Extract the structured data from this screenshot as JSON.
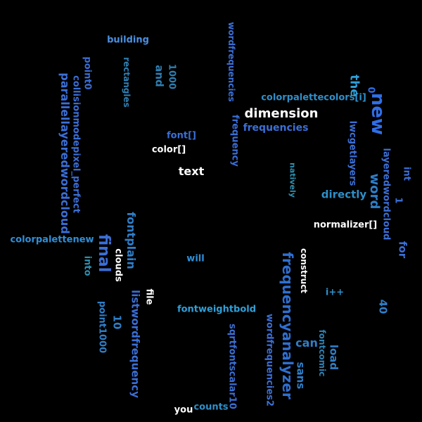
{
  "words": [
    {
      "text": "building",
      "color": "#4a90e2",
      "rotation": 0
    },
    {
      "text": "point0",
      "color": "#3b6fd6",
      "rotation": 90
    },
    {
      "text": "rectangles",
      "color": "#2f7fb3",
      "rotation": 90
    },
    {
      "text": "1000",
      "color": "#2f7fb3",
      "rotation": 90
    },
    {
      "text": "and",
      "color": "#2f7fb3",
      "rotation": 90
    },
    {
      "text": "parallellayeredwordcloud",
      "color": "#3b6fd6",
      "rotation": 90
    },
    {
      "text": "collisionmodepixel_perfect",
      "color": "#3b6fd6",
      "rotation": 90
    },
    {
      "text": "wordfrequencies",
      "color": "#3b6fd6",
      "rotation": 90
    },
    {
      "text": "frequency",
      "color": "#3b6fd6",
      "rotation": 90
    },
    {
      "text": "colorpalettecolors[i]",
      "color": "#2f8fc8",
      "rotation": 0
    },
    {
      "text": "dimension",
      "color": "#ffffff",
      "rotation": 0
    },
    {
      "text": "frequencies",
      "color": "#3b6fd6",
      "rotation": 0
    },
    {
      "text": "the",
      "color": "#2f9fd8",
      "rotation": 90
    },
    {
      "text": "new",
      "color": "#2f6fe8",
      "rotation": 90
    },
    {
      "text": "0",
      "color": "#2f6fe8",
      "rotation": 90
    },
    {
      "text": "font[]",
      "color": "#3b6fd6",
      "rotation": 0
    },
    {
      "text": "color[]",
      "color": "#ffffff",
      "rotation": 0
    },
    {
      "text": "text",
      "color": "#ffffff",
      "rotation": 0
    },
    {
      "text": "natively",
      "color": "#2f8fb0",
      "rotation": 90
    },
    {
      "text": "lwcgetlayers",
      "color": "#3b6fd6",
      "rotation": 90
    },
    {
      "text": "layeredwordcloud",
      "color": "#3b6fd6",
      "rotation": 90
    },
    {
      "text": "word",
      "color": "#2f7fc8",
      "rotation": 90
    },
    {
      "text": "directly",
      "color": "#2f8fc8",
      "rotation": 0
    },
    {
      "text": "int",
      "color": "#3b6fd6",
      "rotation": 90
    },
    {
      "text": "1",
      "color": "#3b6fd6",
      "rotation": 90
    },
    {
      "text": "colorpalettenew",
      "color": "#2f8fd8",
      "rotation": 0
    },
    {
      "text": "final",
      "color": "#3b6fd6",
      "rotation": 90
    },
    {
      "text": "fontplain",
      "color": "#2f7fc8",
      "rotation": 90
    },
    {
      "text": "normalizer[]",
      "color": "#ffffff",
      "rotation": 0
    },
    {
      "text": "for",
      "color": "#3b6fd6",
      "rotation": 90
    },
    {
      "text": "into",
      "color": "#2f8fb0",
      "rotation": 90
    },
    {
      "text": "clouds",
      "color": "#ffffff",
      "rotation": 90
    },
    {
      "text": "will",
      "color": "#2f8fd8",
      "rotation": 0
    },
    {
      "text": "construct",
      "color": "#ffffff",
      "rotation": 90
    },
    {
      "text": "frequencyanalyzer",
      "color": "#2f6fd0",
      "rotation": 90
    },
    {
      "text": "i++",
      "color": "#2f8fc8",
      "rotation": 0
    },
    {
      "text": "40",
      "color": "#2f7fc8",
      "rotation": 90
    },
    {
      "text": "listwordfrequency",
      "color": "#3b6fd6",
      "rotation": 90
    },
    {
      "text": "file",
      "color": "#ffffff",
      "rotation": 90
    },
    {
      "text": "fontweightbold",
      "color": "#2f9fd8",
      "rotation": 0
    },
    {
      "text": "point1000",
      "color": "#2f7fc8",
      "rotation": 90
    },
    {
      "text": "10",
      "color": "#2f7fc8",
      "rotation": 90
    },
    {
      "text": "sqrtfontscalar10",
      "color": "#3b6fd6",
      "rotation": 90
    },
    {
      "text": "wordfrequencies2",
      "color": "#3b6fd6",
      "rotation": 90
    },
    {
      "text": "can",
      "color": "#2f7fc8",
      "rotation": 0
    },
    {
      "text": "load",
      "color": "#2f7fc8",
      "rotation": 90
    },
    {
      "text": "fontcomic",
      "color": "#2f7fb0",
      "rotation": 90
    },
    {
      "text": "sans",
      "color": "#2f7fc8",
      "rotation": 90
    },
    {
      "text": "you",
      "color": "#ffffff",
      "rotation": 0
    },
    {
      "text": "counts",
      "color": "#2f8fc8",
      "rotation": 0
    }
  ]
}
